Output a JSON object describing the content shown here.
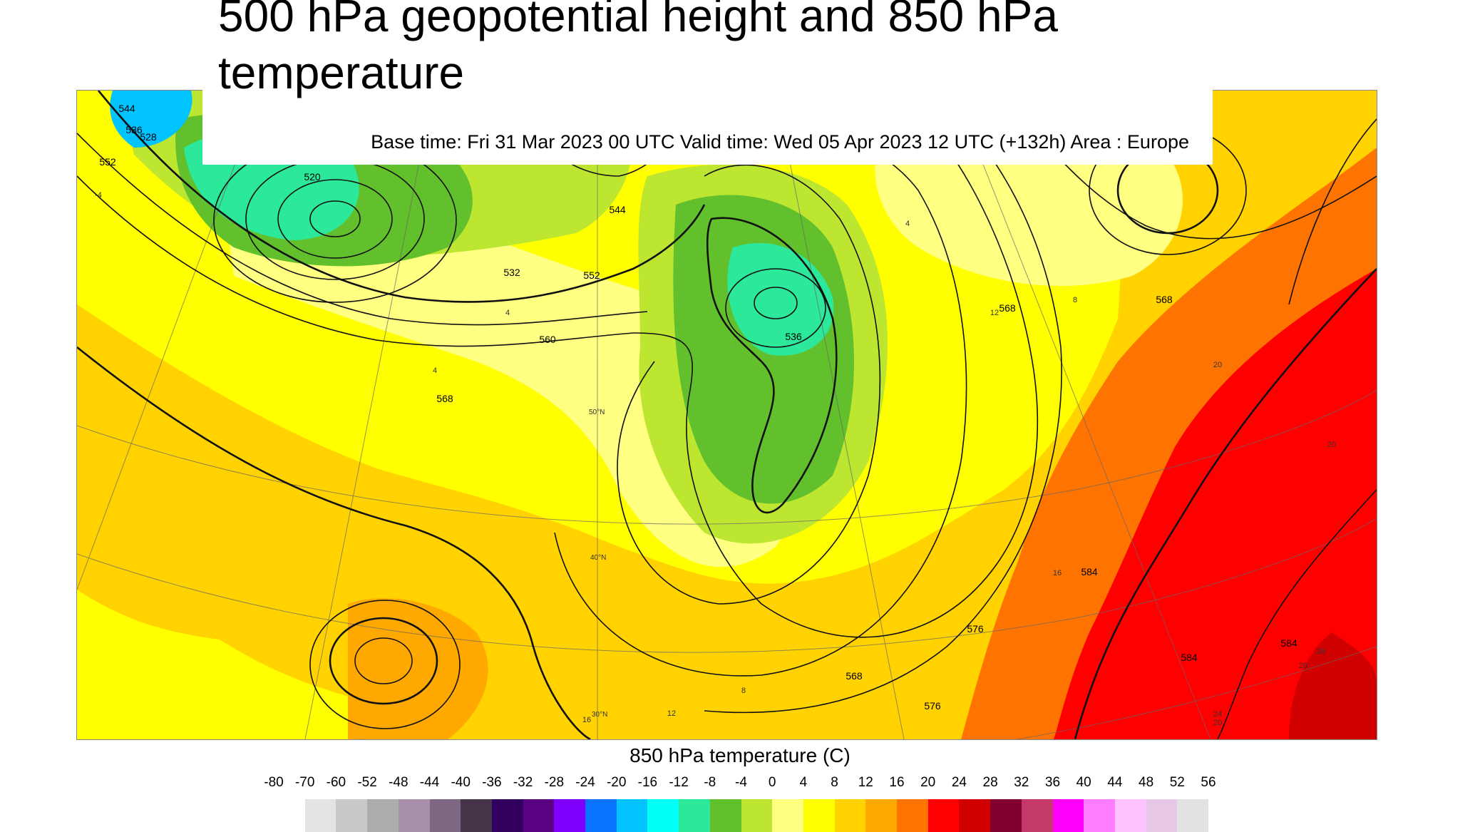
{
  "title": "500 hPa geopotential height and 850 hPa temperature",
  "subtitle": "Base time: Fri 31 Mar 2023 00 UTC Valid time: Wed 05 Apr 2023 12 UTC (+132h) Area : Europe",
  "colorbar": {
    "title": "850 hPa temperature (C)",
    "ticks": [
      "-80",
      "-70",
      "-60",
      "-52",
      "-48",
      "-44",
      "-40",
      "-36",
      "-32",
      "-28",
      "-24",
      "-20",
      "-16",
      "-12",
      "-8",
      "-4",
      "0",
      "4",
      "8",
      "12",
      "16",
      "20",
      "24",
      "28",
      "32",
      "36",
      "40",
      "44",
      "48",
      "52",
      "56"
    ],
    "colors": [
      "#e4e4e4",
      "#c9c9c9",
      "#acacac",
      "#a890aa",
      "#7e6782",
      "#463448",
      "#31005e",
      "#5a0082",
      "#7f00ff",
      "#0a73ff",
      "#00c3ff",
      "#00fff5",
      "#2be89a",
      "#63c02d",
      "#bde631",
      "#ffff82",
      "#ffff00",
      "#ffd200",
      "#ffa800",
      "#ff7300",
      "#ff0000",
      "#d00000",
      "#810030",
      "#c4396a",
      "#ff00ff",
      "#ff7dff",
      "#ffc3ff",
      "#e6c8e6",
      "#e2e2e2"
    ]
  },
  "contour_labels": [
    "544",
    "532",
    "528",
    "536",
    "552",
    "520",
    "544",
    "552",
    "560",
    "568",
    "576",
    "568",
    "584",
    "568",
    "568",
    "536",
    "576",
    "584",
    "584",
    "568"
  ],
  "temperature_labels": [
    "-4",
    "4",
    "8",
    "4",
    "12",
    "8",
    "4",
    "20",
    "16",
    "24",
    "28",
    "12",
    "16",
    "20",
    "20",
    "20"
  ],
  "graticule_labels": [
    "50°N",
    "40°N",
    "30°N"
  ]
}
